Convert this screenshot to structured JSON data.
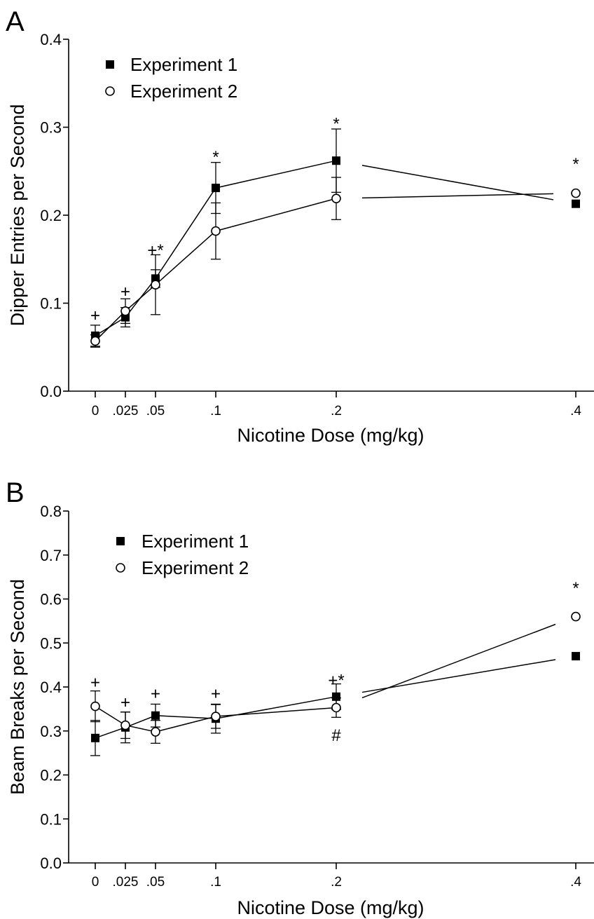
{
  "chart_data": [
    {
      "type": "line",
      "panel": "A",
      "xlabel": "Nicotine Dose (mg/kg)",
      "ylabel": "Dipper Entries per Second",
      "ylim": [
        0,
        0.4
      ],
      "yticks": [
        "0.0",
        "0.1",
        "0.2",
        "0.3",
        "0.4"
      ],
      "x": [
        0,
        0.025,
        0.05,
        0.1,
        0.2,
        0.4
      ],
      "xtick_labels": [
        "0",
        ".025",
        ".05",
        ".1",
        ".2",
        ".4"
      ],
      "legend_position": "top-left",
      "series": [
        {
          "name": "Experiment 1",
          "marker": "filled-square",
          "values": [
            0.063,
            0.084,
            0.128,
            0.231,
            0.262,
            0.213
          ],
          "err": [
            0.012,
            0.011,
            0.01,
            0.029,
            0.036,
            0
          ]
        },
        {
          "name": "Experiment 2",
          "marker": "open-circle",
          "values": [
            0.057,
            0.091,
            0.121,
            0.182,
            0.219,
            0.225
          ],
          "err": [
            0.007,
            0.014,
            0.034,
            0.032,
            0.024,
            0
          ]
        }
      ],
      "annotations": [
        {
          "text": "+",
          "x": 0,
          "y": 0.086
        },
        {
          "text": "+",
          "x": 0.025,
          "y": 0.113
        },
        {
          "text": "+*",
          "x": 0.05,
          "y": 0.16
        },
        {
          "text": "*",
          "x": 0.1,
          "y": 0.266
        },
        {
          "text": "*",
          "x": 0.2,
          "y": 0.304
        },
        {
          "text": "*",
          "x": 0.4,
          "y": 0.258
        }
      ]
    },
    {
      "type": "line",
      "panel": "B",
      "xlabel": "Nicotine Dose (mg/kg)",
      "ylabel": "Beam Breaks per Second",
      "ylim": [
        0,
        0.8
      ],
      "yticks": [
        "0.0",
        "0.1",
        "0.2",
        "0.3",
        "0.4",
        "0.5",
        "0.6",
        "0.7",
        "0.8"
      ],
      "x": [
        0,
        0.025,
        0.05,
        0.1,
        0.2,
        0.4
      ],
      "xtick_labels": [
        "0",
        ".025",
        ".05",
        ".1",
        ".2",
        ".4"
      ],
      "legend_position": "top-left",
      "series": [
        {
          "name": "Experiment 1",
          "marker": "filled-square",
          "values": [
            0.284,
            0.308,
            0.335,
            0.328,
            0.378,
            0.47
          ],
          "err": [
            0.04,
            0.035,
            0.026,
            0.033,
            0.029,
            0
          ]
        },
        {
          "name": "Experiment 2",
          "marker": "open-circle",
          "values": [
            0.356,
            0.313,
            0.298,
            0.333,
            0.353,
            0.56
          ],
          "err": [
            0.035,
            0.03,
            0.026,
            0.027,
            0.022,
            0
          ]
        }
      ],
      "annotations": [
        {
          "text": "+",
          "x": 0,
          "y": 0.41
        },
        {
          "text": "+",
          "x": 0.025,
          "y": 0.365
        },
        {
          "text": "+",
          "x": 0.05,
          "y": 0.385
        },
        {
          "text": "+",
          "x": 0.1,
          "y": 0.385
        },
        {
          "text": "+*",
          "x": 0.2,
          "y": 0.415
        },
        {
          "text": "#",
          "x": 0.2,
          "y": 0.29
        },
        {
          "text": "*",
          "x": 0.4,
          "y": 0.625
        }
      ]
    }
  ]
}
